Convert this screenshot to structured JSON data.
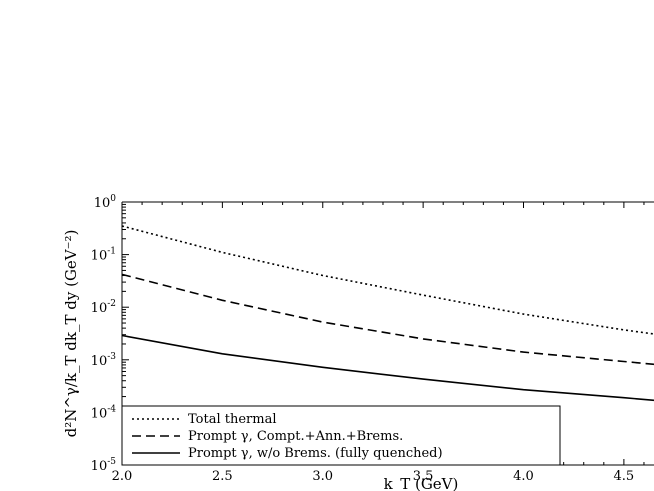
{
  "chart_data": {
    "type": "line",
    "title": "",
    "xlabel": "k_T (GeV)",
    "ylabel": "d²N^γ/k_T dk_T dy (GeV⁻²)",
    "xlim": [
      2.0,
      4.65
    ],
    "ylim": [
      1e-05,
      1.0
    ],
    "yscale": "log",
    "grid": false,
    "legend_position": "bottom-left",
    "x_ticks": [
      "2.0",
      "2.5",
      "3.0",
      "3.5",
      "4.0",
      "4.5"
    ],
    "x_tick_values": [
      2.0,
      2.5,
      3.0,
      3.5,
      4.0,
      4.5
    ],
    "y_tick_exponents": [
      0,
      -1,
      -2,
      -3,
      -4,
      -5
    ],
    "x": [
      2.0,
      2.5,
      3.0,
      3.5,
      4.0,
      4.5,
      4.65
    ],
    "series": [
      {
        "name": "Total thermal",
        "style": "dotted",
        "values": [
          0.35,
          0.11,
          0.04,
          0.017,
          0.0074,
          0.0037,
          0.0031
        ]
      },
      {
        "name": "Prompt γ, Compt.+Ann.+Brems.",
        "style": "dashed",
        "values": [
          0.042,
          0.0135,
          0.0052,
          0.0025,
          0.0014,
          0.00093,
          0.00082
        ]
      },
      {
        "name": "Prompt γ, w/o Brems. (fully quenched)",
        "style": "solid",
        "values": [
          0.0029,
          0.0013,
          0.00072,
          0.00043,
          0.00027,
          0.00019,
          0.00017
        ]
      }
    ]
  }
}
